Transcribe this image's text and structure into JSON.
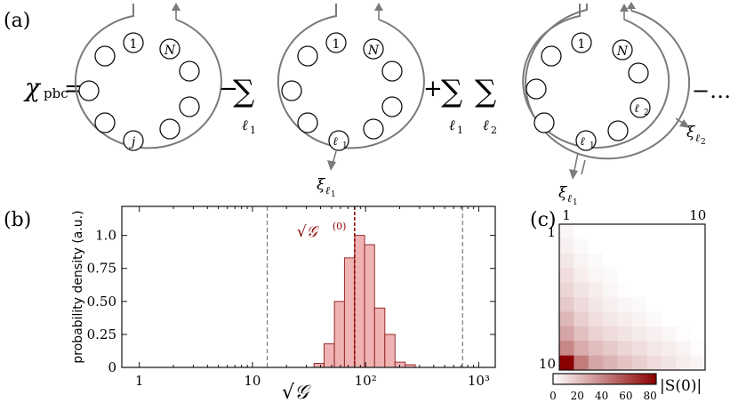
{
  "panel_labels": {
    "a": "(a)",
    "b": "(b)",
    "c": "(c)"
  },
  "panel_a": {
    "lhs": "χ",
    "lhs_subscript": "pbc",
    "equals": "=",
    "minus": "−",
    "plus": "+",
    "sum_symbol": "∑",
    "trailing": "−…",
    "site_labels": {
      "first": "1",
      "last": "N",
      "j": "j",
      "l1": "ℓ",
      "l2": "ℓ"
    },
    "index_sub": {
      "one": "1",
      "two": "2"
    },
    "sum_indices": [
      "ℓ",
      "ℓ",
      "ℓ"
    ],
    "xi": "ξ",
    "xi_sub": "ℓ"
  },
  "chart_data": [
    {
      "type": "bar",
      "panel": "(b)",
      "xlabel": "√𝒢",
      "ylabel": "probability density (a.u.)",
      "x_scale": "log",
      "xlim": [
        0.7,
        1400
      ],
      "ylim": [
        0,
        1.22
      ],
      "x_ticks": [
        1,
        10,
        100,
        1000
      ],
      "x_tick_labels": [
        "1",
        "10",
        "10²",
        "10³"
      ],
      "y_ticks": [
        0,
        0.25,
        0.5,
        0.75,
        1.0
      ],
      "y_tick_labels": [
        "0",
        "0.25",
        "0.50",
        "0.75",
        "1.0"
      ],
      "bin_edges": [
        35,
        43,
        53,
        65,
        80,
        98,
        120,
        148,
        182,
        224,
        275
      ],
      "values": [
        0.03,
        0.18,
        0.5,
        0.83,
        1.0,
        0.93,
        0.45,
        0.25,
        0.04,
        0.02
      ],
      "reference_lines": [
        {
          "x": 13.5,
          "style": "gray-dashed"
        },
        {
          "x": 80,
          "style": "red-dashed",
          "label": "√𝒢",
          "label_sup": "(0)"
        },
        {
          "x": 720,
          "style": "gray-dashed"
        }
      ],
      "grid": false
    },
    {
      "type": "heatmap",
      "panel": "(c)",
      "size": 10,
      "row_tick_labels": [
        "1",
        "10"
      ],
      "col_tick_labels": [
        "1",
        "10"
      ],
      "colorbar_label": "|S(0)|",
      "colorbar_ticks": [
        "0",
        "20",
        "40",
        "60",
        "80"
      ],
      "colorbar_range": [
        0,
        85
      ],
      "color_low": "#ffffff",
      "color_high": "#8b0000",
      "matrix": [
        [
          3,
          0,
          0,
          0,
          0,
          0,
          0,
          0,
          0,
          0
        ],
        [
          5,
          2,
          0,
          0,
          0,
          0,
          0,
          0,
          0,
          0
        ],
        [
          8,
          4,
          2,
          0,
          0,
          0,
          0,
          0,
          0,
          0
        ],
        [
          11,
          6,
          3,
          2,
          0,
          0,
          0,
          0,
          0,
          0
        ],
        [
          14,
          9,
          6,
          3,
          1,
          0,
          0,
          0,
          0,
          0
        ],
        [
          18,
          12,
          8,
          5,
          3,
          2,
          0,
          0,
          0,
          0
        ],
        [
          24,
          16,
          11,
          8,
          6,
          4,
          2,
          0,
          0,
          0
        ],
        [
          30,
          21,
          15,
          12,
          9,
          7,
          5,
          3,
          1,
          0
        ],
        [
          40,
          28,
          22,
          18,
          14,
          11,
          8,
          6,
          4,
          1
        ],
        [
          85,
          44,
          30,
          25,
          20,
          16,
          12,
          9,
          6,
          4
        ]
      ]
    }
  ],
  "colors": {
    "ring": "#7a7a7a",
    "bar_fill": "#f0b3b3",
    "bar_edge": "#8b1a1a",
    "ref_red": "#8b0000"
  }
}
